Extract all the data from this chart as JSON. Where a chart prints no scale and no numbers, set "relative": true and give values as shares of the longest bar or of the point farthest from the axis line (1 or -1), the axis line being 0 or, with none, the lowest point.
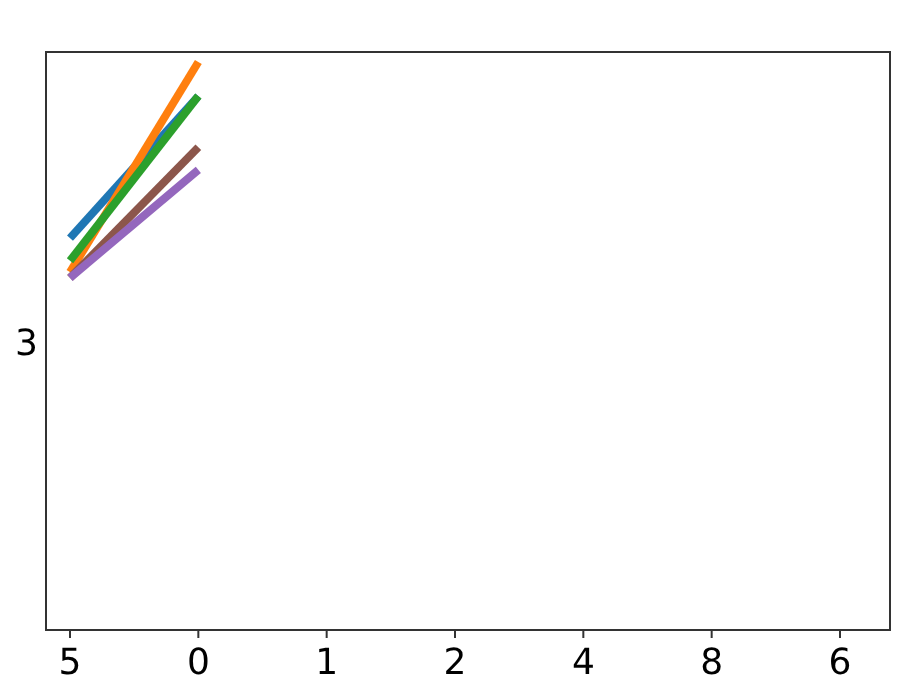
{
  "chart_data": {
    "type": "line",
    "relative": true,
    "categories": [
      "5",
      "0",
      "1",
      "2",
      "4",
      "8",
      "6"
    ],
    "series": [
      {
        "color": "#1f77b4",
        "values": [
          0.69,
          0.94,
          null,
          null,
          null,
          null,
          null
        ]
      },
      {
        "color": "#ff7f0e",
        "values": [
          0.63,
          1,
          null,
          null,
          null,
          null,
          null
        ]
      },
      {
        "color": "#2ca02c",
        "values": [
          0.65,
          0.94,
          null,
          null,
          null,
          null,
          null
        ]
      },
      {
        "color": "#8c564b",
        "values": [
          0.62,
          0.85,
          null,
          null,
          null,
          null,
          null
        ]
      },
      {
        "color": "#9467bd",
        "values": [
          0.62,
          0.81,
          null,
          null,
          null,
          null,
          null
        ]
      }
    ],
    "annotations": [
      "3"
    ]
  }
}
